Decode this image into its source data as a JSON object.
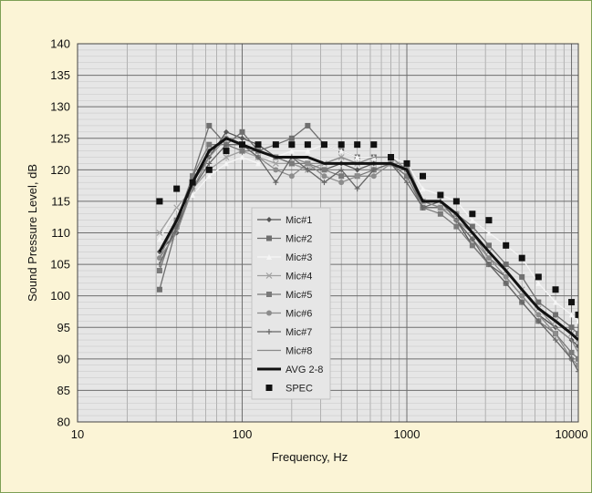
{
  "chart_data": {
    "type": "line",
    "title": "",
    "xlabel": "Frequency, Hz",
    "ylabel": "Sound Pressure Level, dB",
    "x_scale": "log",
    "xlim": [
      10,
      11000
    ],
    "ylim": [
      80,
      140
    ],
    "x_ticks": [
      10,
      100,
      1000,
      10000
    ],
    "x_tick_labels": [
      "10",
      "100",
      "1000",
      "10000"
    ],
    "y_ticks": [
      80,
      85,
      90,
      95,
      100,
      105,
      110,
      115,
      120,
      125,
      130,
      135,
      140
    ],
    "y_tick_labels": [
      "80",
      "85",
      "90",
      "95",
      "100",
      "105",
      "110",
      "115",
      "120",
      "125",
      "130",
      "135",
      "140"
    ],
    "grid": true,
    "legend_position": "center-left",
    "x": [
      31.5,
      40,
      50,
      63,
      80,
      100,
      125,
      160,
      200,
      250,
      315,
      400,
      500,
      630,
      800,
      1000,
      1250,
      1600,
      2000,
      2500,
      3150,
      4000,
      5000,
      6300,
      8000,
      10000,
      11000
    ],
    "series": [
      {
        "name": "Mic#1",
        "color": "#555555",
        "marker": "diamond",
        "values": [
          107,
          110,
          118,
          122,
          126,
          125,
          124,
          122,
          121,
          120,
          120,
          121,
          120,
          121,
          121,
          119,
          114,
          114,
          112,
          108,
          105,
          103,
          100,
          97,
          95,
          93,
          92
        ]
      },
      {
        "name": "Mic#2",
        "color": "#6f6f6f",
        "marker": "square",
        "values": [
          101,
          111,
          119,
          127,
          124,
          126,
          123,
          124,
          125,
          127,
          124,
          123,
          122,
          122,
          122,
          120,
          114,
          114,
          113,
          111,
          108,
          105,
          103,
          99,
          97,
          95,
          94
        ]
      },
      {
        "name": "Mic#3",
        "color": "#f5f5f5",
        "marker": "triangle",
        "values": [
          109,
          114,
          116,
          119,
          121,
          122,
          121,
          122,
          123,
          123,
          124,
          123,
          122,
          122,
          122,
          121,
          117,
          116,
          115,
          112,
          110,
          108,
          106,
          102,
          99,
          97,
          96
        ]
      },
      {
        "name": "Mic#4",
        "color": "#a0a0a0",
        "marker": "x",
        "values": [
          110,
          114,
          117,
          120,
          122,
          123,
          122,
          121,
          121,
          120,
          121,
          122,
          121,
          121,
          121,
          120,
          115,
          114,
          113,
          110,
          107,
          104,
          101,
          98,
          96,
          94,
          93
        ]
      },
      {
        "name": "Mic#5",
        "color": "#7a7a7a",
        "marker": "square",
        "values": [
          104,
          112,
          119,
          124,
          124,
          123,
          123,
          122,
          121,
          121,
          120,
          119,
          119,
          120,
          121,
          119,
          114,
          113,
          111,
          108,
          105,
          102,
          99,
          96,
          94,
          91,
          90
        ]
      },
      {
        "name": "Mic#6",
        "color": "#8c8c8c",
        "marker": "circle",
        "values": [
          106,
          112,
          118,
          123,
          125,
          124,
          122,
          120,
          119,
          121,
          119,
          118,
          119,
          119,
          121,
          121,
          115,
          114,
          112,
          109,
          106,
          103,
          100,
          97,
          94,
          90,
          89
        ]
      },
      {
        "name": "Mic#7",
        "color": "#666666",
        "marker": "plus",
        "values": [
          105,
          111,
          117,
          121,
          124,
          124,
          122,
          118,
          122,
          120,
          118,
          120,
          117,
          120,
          121,
          118,
          114,
          115,
          112,
          109,
          105,
          102,
          99,
          96,
          93,
          90,
          88
        ]
      },
      {
        "name": "Mic#8",
        "color": "#8a8a8a",
        "marker": "none",
        "values": [
          106,
          110,
          117,
          122,
          125,
          124,
          123,
          122,
          122,
          121,
          121,
          122,
          121,
          122,
          122,
          120,
          115,
          114,
          112,
          110,
          106,
          104,
          101,
          98,
          95,
          93,
          91
        ]
      },
      {
        "name": "AVG 2-8",
        "color": "#111111",
        "marker": "none",
        "thick": true,
        "values": [
          107,
          112,
          118,
          123,
          125,
          124,
          123,
          122,
          122,
          122,
          121,
          121,
          121,
          121,
          121,
          120,
          115,
          115,
          113,
          110,
          107,
          104,
          101,
          98,
          96,
          94,
          93
        ]
      },
      {
        "name": "SPEC",
        "color": "#111111",
        "marker": "square-only",
        "values": [
          115,
          117,
          118,
          120,
          123,
          124,
          124,
          124,
          124,
          124,
          124,
          124,
          124,
          124,
          122,
          121,
          119,
          116,
          115,
          113,
          112,
          108,
          106,
          103,
          101,
          99,
          97
        ]
      }
    ]
  }
}
